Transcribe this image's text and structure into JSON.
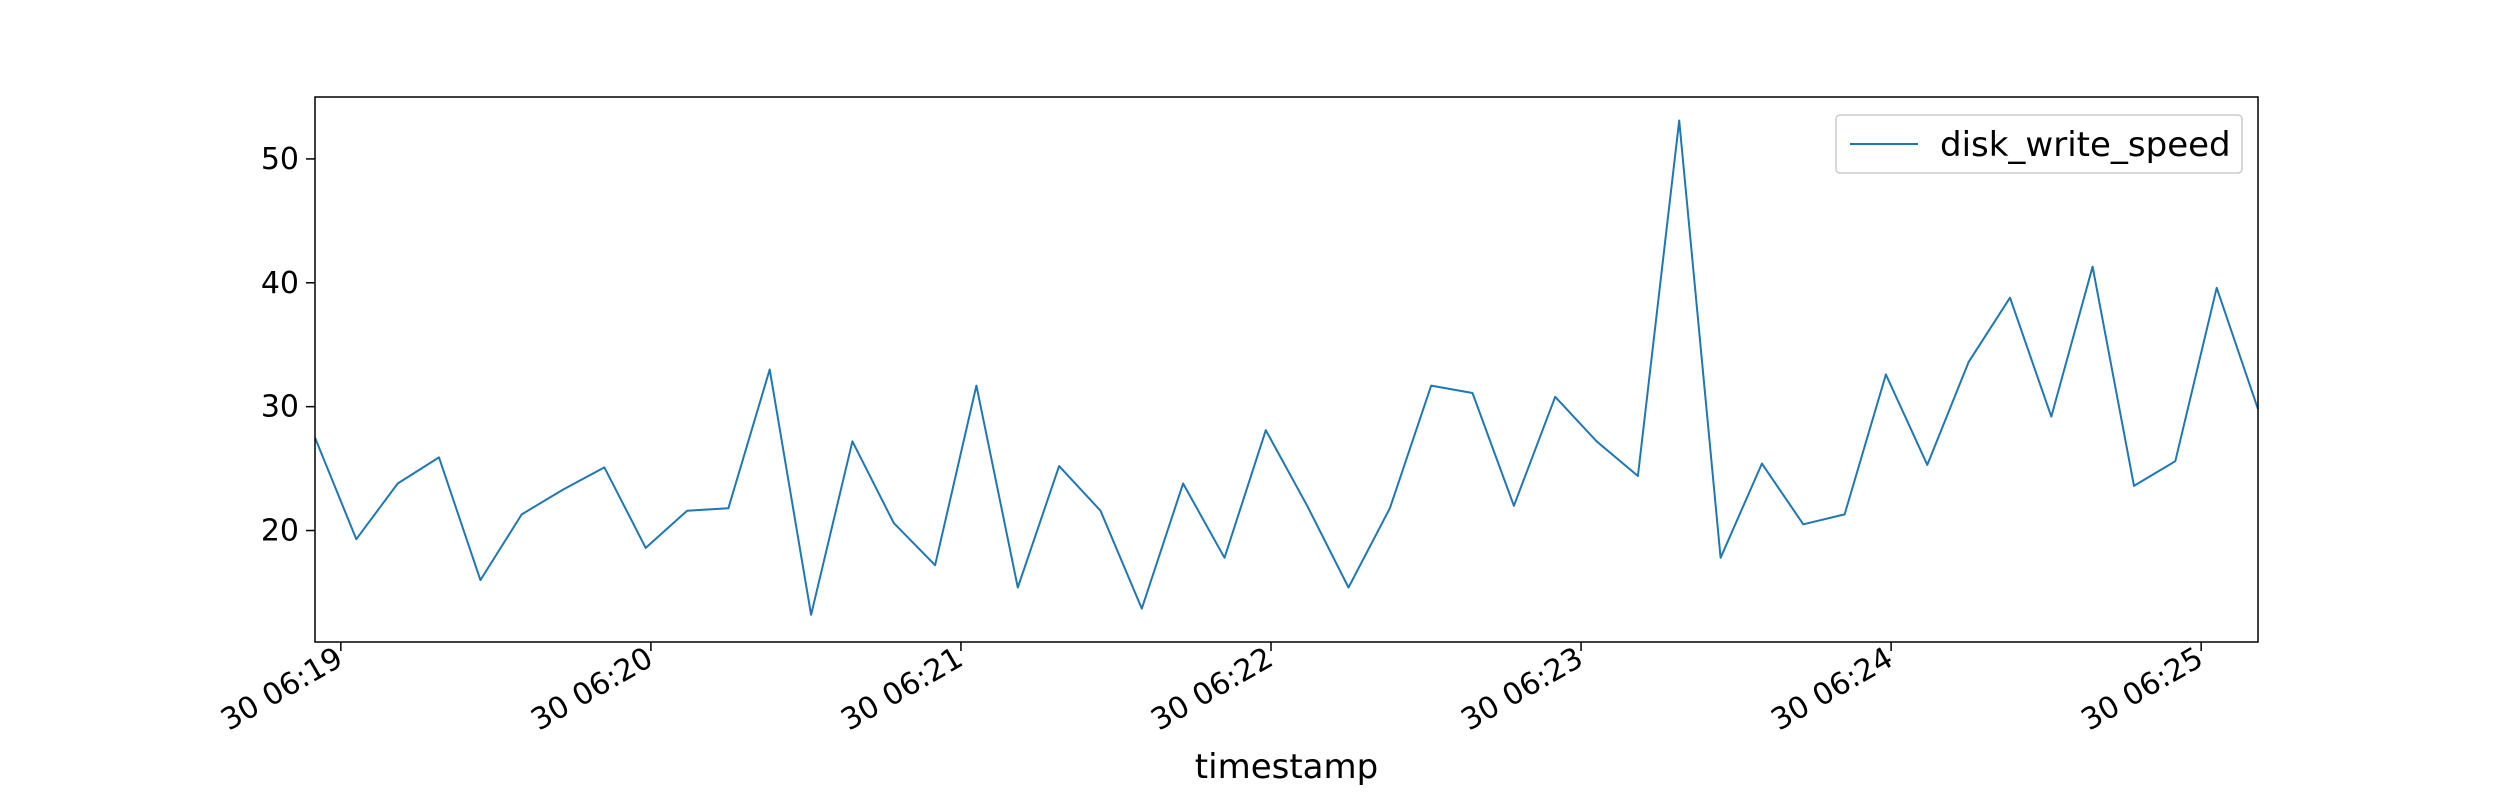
{
  "chart_data": {
    "type": "line",
    "title": "",
    "xlabel": "timestamp",
    "ylabel": "",
    "x_tick_labels": [
      "30 06:19",
      "30 06:20",
      "30 06:21",
      "30 06:22",
      "30 06:23",
      "30 06:24",
      "30 06:25"
    ],
    "y_ticks": [
      20,
      30,
      40,
      50
    ],
    "ylim": [
      11,
      55
    ],
    "legend": {
      "position": "top-right"
    },
    "colors": {
      "series": "#1f77b4",
      "axes": "#000000",
      "background": "#ffffff"
    },
    "series": [
      {
        "name": "disk_write_speed",
        "x": [
          "06:18:55",
          "06:19:03",
          "06:19:11",
          "06:19:19",
          "06:19:27",
          "06:19:35",
          "06:19:43",
          "06:19:51",
          "06:19:59",
          "06:20:07",
          "06:20:15",
          "06:20:23",
          "06:20:31",
          "06:20:39",
          "06:20:47",
          "06:20:55",
          "06:21:03",
          "06:21:11",
          "06:21:19",
          "06:21:27",
          "06:21:35",
          "06:21:43",
          "06:21:51",
          "06:21:59",
          "06:22:07",
          "06:22:15",
          "06:22:23",
          "06:22:31",
          "06:22:39",
          "06:22:47",
          "06:22:55",
          "06:23:03",
          "06:23:11",
          "06:23:19",
          "06:23:27",
          "06:23:35",
          "06:23:43",
          "06:23:51",
          "06:23:59",
          "06:24:07",
          "06:24:15",
          "06:24:23",
          "06:24:31",
          "06:24:39",
          "06:24:47",
          "06:24:55",
          "06:25:03",
          "06:25:11"
        ],
        "values": [
          27.5,
          19.3,
          23.8,
          25.9,
          16.0,
          21.3,
          23.3,
          25.1,
          18.6,
          21.6,
          21.8,
          33.0,
          13.2,
          27.2,
          20.6,
          17.2,
          31.7,
          15.4,
          25.2,
          21.6,
          13.7,
          23.8,
          17.8,
          28.1,
          22.0,
          15.4,
          21.8,
          31.7,
          31.1,
          22.0,
          30.8,
          27.2,
          24.4,
          53.1,
          17.8,
          25.4,
          20.5,
          21.3,
          32.6,
          25.3,
          33.6,
          38.8,
          29.2,
          41.3,
          23.6,
          25.6,
          39.6,
          29.8
        ]
      }
    ]
  }
}
